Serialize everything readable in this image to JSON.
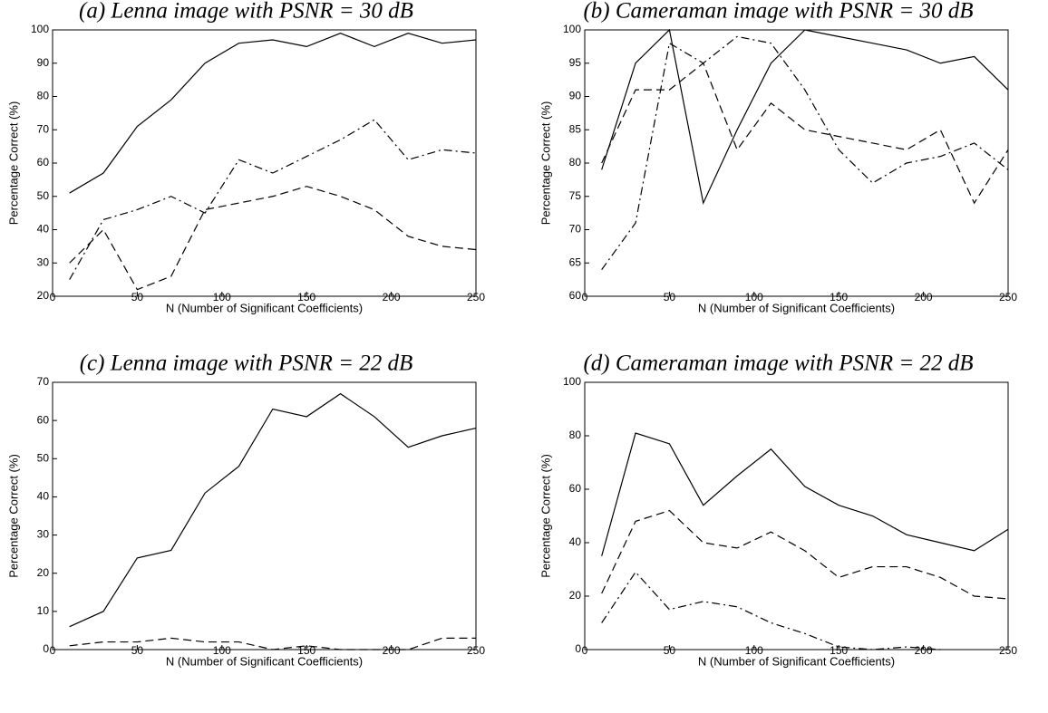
{
  "chart_data": [
    {
      "type": "line",
      "title": "(a) Lenna image with PSNR = 30 dB",
      "xlabel": "N (Number of Significant Coefficients)",
      "ylabel": "Percentage Correct (%)",
      "x": [
        10,
        30,
        50,
        70,
        90,
        110,
        130,
        150,
        170,
        190,
        210,
        230,
        250
      ],
      "xlim": [
        0,
        250
      ],
      "xticks": [
        0,
        50,
        100,
        150,
        200,
        250
      ],
      "ylim": [
        20,
        100
      ],
      "yticks": [
        20,
        30,
        40,
        50,
        60,
        70,
        80,
        90,
        100
      ],
      "series": [
        {
          "color": "#000",
          "dash": "solid",
          "values": [
            51,
            57,
            71,
            79,
            90,
            96,
            97,
            95,
            99,
            95,
            99,
            96,
            97
          ]
        },
        {
          "color": "#000",
          "dash": "dashdot",
          "values": [
            25,
            43,
            46,
            50,
            45,
            61,
            57,
            62,
            67,
            73,
            61,
            64,
            63
          ]
        },
        {
          "color": "#000",
          "dash": "dashed",
          "values": [
            30,
            40,
            22,
            26,
            46,
            48,
            50,
            53,
            50,
            46,
            38,
            35,
            34
          ]
        }
      ]
    },
    {
      "type": "line",
      "title": "(b) Cameraman image with PSNR = 30 dB",
      "xlabel": "N (Number of Significant Coefficients)",
      "ylabel": "Percentage Correct (%)",
      "x": [
        10,
        30,
        50,
        70,
        90,
        110,
        130,
        150,
        170,
        190,
        210,
        230,
        250
      ],
      "xlim": [
        0,
        250
      ],
      "xticks": [
        0,
        50,
        100,
        150,
        200,
        250
      ],
      "ylim": [
        60,
        100
      ],
      "yticks": [
        60,
        65,
        70,
        75,
        80,
        85,
        90,
        95,
        100
      ],
      "series": [
        {
          "color": "#000",
          "dash": "solid",
          "values": [
            79,
            95,
            100,
            74,
            85,
            95,
            100,
            99,
            98,
            97,
            95,
            96,
            91
          ]
        },
        {
          "color": "#000",
          "dash": "dashed",
          "values": [
            80,
            91,
            91,
            95,
            82,
            89,
            85,
            84,
            83,
            82,
            85,
            74,
            82
          ]
        },
        {
          "color": "#000",
          "dash": "dashdot",
          "values": [
            64,
            71,
            98,
            95,
            99,
            98,
            91,
            82,
            77,
            80,
            81,
            83,
            79
          ]
        }
      ]
    },
    {
      "type": "line",
      "title": "(c) Lenna image with PSNR = 22 dB",
      "xlabel": "N (Number of Significant Coefficients)",
      "ylabel": "Percentage Correct (%)",
      "x": [
        10,
        30,
        50,
        70,
        90,
        110,
        130,
        150,
        170,
        190,
        210,
        230,
        250
      ],
      "xlim": [
        0,
        250
      ],
      "xticks": [
        0,
        50,
        100,
        150,
        200,
        250
      ],
      "ylim": [
        0,
        70
      ],
      "yticks": [
        0,
        10,
        20,
        30,
        40,
        50,
        60,
        70
      ],
      "series": [
        {
          "color": "#000",
          "dash": "solid",
          "values": [
            6,
            10,
            24,
            26,
            41,
            48,
            63,
            61,
            67,
            61,
            53,
            56,
            58
          ]
        },
        {
          "color": "#000",
          "dash": "dashed",
          "values": [
            1,
            2,
            2,
            3,
            2,
            2,
            0,
            1,
            0,
            0,
            0,
            3,
            3
          ]
        }
      ]
    },
    {
      "type": "line",
      "title": "(d) Cameraman image with PSNR = 22 dB",
      "xlabel": "N (Number of Significant Coefficients)",
      "ylabel": "Percentage Correct (%)",
      "x": [
        10,
        30,
        50,
        70,
        90,
        110,
        130,
        150,
        170,
        190,
        210,
        230,
        250
      ],
      "xlim": [
        0,
        250
      ],
      "xticks": [
        0,
        50,
        100,
        150,
        200,
        250
      ],
      "ylim": [
        0,
        100
      ],
      "yticks": [
        0,
        20,
        40,
        60,
        80,
        100
      ],
      "series": [
        {
          "color": "#000",
          "dash": "solid",
          "values": [
            35,
            81,
            77,
            54,
            65,
            75,
            61,
            54,
            50,
            43,
            40,
            37,
            45
          ]
        },
        {
          "color": "#000",
          "dash": "dashed",
          "values": [
            21,
            48,
            52,
            40,
            38,
            44,
            37,
            27,
            31,
            31,
            27,
            20,
            19
          ]
        },
        {
          "color": "#000",
          "dash": "dashdot",
          "values": [
            10,
            29,
            15,
            18,
            16,
            10,
            6,
            1,
            0,
            1,
            0,
            null,
            null
          ]
        }
      ]
    }
  ]
}
